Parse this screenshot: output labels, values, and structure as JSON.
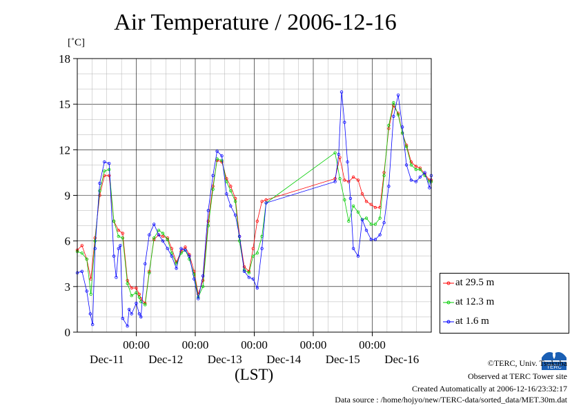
{
  "title": "Air Temperature / 2006-12-16",
  "unit_label": "[˚C]",
  "x_axis_label": "(LST)",
  "credits": {
    "copyright": "©TERC, Univ. Tsukuba",
    "site": "Observed at TERC Tower site",
    "created": "Created Automatically at 2006-12-16/23:32:17",
    "source": "Data source : /home/hojyo/new/TERC-data/sorted_data/MET.30m.dat"
  },
  "logo_text": "TERC",
  "chart_data": {
    "type": "line",
    "title": "Air Temperature / 2006-12-16",
    "ylabel": "[˚C]",
    "xlabel": "(LST)",
    "ylim": [
      0,
      18
    ],
    "yticks": [
      0,
      3,
      6,
      9,
      12,
      15,
      18
    ],
    "xlim": [
      -0.5,
      5.5
    ],
    "x_unit": "days since 2006-12-11 00:00 LST",
    "x_time_ticks": [
      {
        "x": 0.5,
        "label": "00:00"
      },
      {
        "x": 1.5,
        "label": "00:00"
      },
      {
        "x": 2.5,
        "label": "00:00"
      },
      {
        "x": 3.5,
        "label": "00:00"
      },
      {
        "x": 4.5,
        "label": "00:00"
      }
    ],
    "x_day_labels": [
      {
        "x": 0.0,
        "label": "Dec-11"
      },
      {
        "x": 1.0,
        "label": "Dec-12"
      },
      {
        "x": 2.0,
        "label": "Dec-13"
      },
      {
        "x": 3.0,
        "label": "Dec-14"
      },
      {
        "x": 4.0,
        "label": "Dec-15"
      },
      {
        "x": 5.0,
        "label": "Dec-16"
      }
    ],
    "grid": true,
    "legend_position": "right",
    "series": [
      {
        "name": "at 29.5 m",
        "color": "#ff0000",
        "x": [
          -0.5,
          -0.42,
          -0.34,
          -0.27,
          -0.2,
          -0.12,
          -0.04,
          0.04,
          0.12,
          0.2,
          0.27,
          0.35,
          0.42,
          0.5,
          0.55,
          0.58,
          0.65,
          0.72,
          0.8,
          0.88,
          0.95,
          1.03,
          1.1,
          1.18,
          1.26,
          1.33,
          1.4,
          1.48,
          1.55,
          1.63,
          1.72,
          1.8,
          1.87,
          1.95,
          2.03,
          2.1,
          2.18,
          2.25,
          2.33,
          2.41,
          2.48,
          2.55,
          2.63,
          2.7,
          2.78,
          2.85,
          3.87,
          3.95,
          4.03,
          4.1,
          4.18,
          4.26,
          4.33,
          4.4,
          4.48,
          4.55,
          4.63,
          4.7,
          4.78,
          4.86,
          4.94,
          5.01,
          5.08,
          5.16,
          5.24,
          5.31,
          5.39,
          5.47,
          5.5
        ],
        "y": [
          5.4,
          5.7,
          4.8,
          3.5,
          6.2,
          9.0,
          10.3,
          10.3,
          7.3,
          6.7,
          6.5,
          3.4,
          2.9,
          2.9,
          2.5,
          2.2,
          1.9,
          4.0,
          6.1,
          6.4,
          6.3,
          6.2,
          5.5,
          4.6,
          5.3,
          5.6,
          5.1,
          4.0,
          2.5,
          3.4,
          7.3,
          9.6,
          11.3,
          11.2,
          10.1,
          9.6,
          8.8,
          6.3,
          4.3,
          4.0,
          5.5,
          7.3,
          8.6,
          8.7,
          null,
          null,
          10.1,
          11.5,
          10.0,
          9.9,
          10.2,
          10.0,
          9.1,
          8.6,
          8.4,
          8.2,
          8.2,
          10.5,
          13.4,
          14.9,
          14.4,
          13.1,
          12.3,
          11.2,
          10.9,
          10.8,
          10.4,
          10.0,
          10.0
        ]
      },
      {
        "name": "at 12.3 m",
        "color": "#00cc00",
        "x": [
          -0.5,
          -0.42,
          -0.34,
          -0.27,
          -0.2,
          -0.12,
          -0.04,
          0.04,
          0.12,
          0.2,
          0.27,
          0.35,
          0.42,
          0.5,
          0.55,
          0.58,
          0.65,
          0.72,
          0.8,
          0.88,
          0.95,
          1.03,
          1.1,
          1.18,
          1.26,
          1.33,
          1.4,
          1.48,
          1.55,
          1.63,
          1.72,
          1.8,
          1.87,
          1.95,
          2.03,
          2.1,
          2.18,
          2.25,
          2.33,
          2.41,
          2.48,
          2.55,
          2.63,
          2.7,
          2.78,
          2.85,
          3.87,
          3.95,
          4.03,
          4.1,
          4.18,
          4.26,
          4.33,
          4.4,
          4.48,
          4.55,
          4.63,
          4.7,
          4.78,
          4.86,
          4.94,
          5.01,
          5.08,
          5.16,
          5.24,
          5.31,
          5.39,
          5.47,
          5.5
        ],
        "y": [
          5.3,
          5.2,
          4.8,
          2.5,
          6.0,
          9.3,
          10.6,
          10.7,
          7.3,
          6.3,
          6.2,
          3.2,
          2.4,
          2.6,
          2.3,
          2.0,
          1.8,
          3.9,
          6.2,
          6.7,
          6.5,
          6.1,
          5.2,
          4.5,
          5.2,
          5.4,
          4.8,
          3.8,
          2.3,
          3.0,
          7.0,
          9.4,
          11.4,
          11.3,
          9.9,
          9.3,
          8.6,
          6.0,
          4.1,
          3.9,
          5.0,
          5.2,
          6.3,
          8.5,
          null,
          null,
          11.8,
          10.1,
          8.7,
          7.3,
          8.3,
          7.9,
          7.4,
          7.5,
          7.1,
          7.1,
          7.5,
          10.3,
          13.6,
          15.1,
          14.3,
          13.1,
          12.2,
          11.0,
          10.7,
          10.7,
          10.3,
          9.9,
          9.9
        ]
      },
      {
        "name": "at 1.6 m",
        "color": "#0000ff",
        "x": [
          -0.5,
          -0.42,
          -0.34,
          -0.28,
          -0.24,
          -0.2,
          -0.12,
          -0.04,
          0.04,
          0.12,
          0.16,
          0.2,
          0.23,
          0.27,
          0.35,
          0.38,
          0.42,
          0.5,
          0.55,
          0.58,
          0.65,
          0.72,
          0.8,
          0.88,
          0.95,
          1.03,
          1.1,
          1.18,
          1.26,
          1.33,
          1.4,
          1.48,
          1.55,
          1.63,
          1.72,
          1.8,
          1.87,
          1.95,
          2.03,
          2.1,
          2.18,
          2.25,
          2.33,
          2.41,
          2.48,
          2.55,
          2.63,
          2.7,
          2.78,
          2.85,
          3.87,
          3.93,
          3.98,
          4.03,
          4.08,
          4.13,
          4.18,
          4.26,
          4.33,
          4.4,
          4.48,
          4.55,
          4.63,
          4.7,
          4.78,
          4.86,
          4.94,
          5.01,
          5.08,
          5.16,
          5.24,
          5.31,
          5.39,
          5.47,
          5.5
        ],
        "y": [
          3.9,
          4.0,
          2.7,
          1.2,
          0.5,
          5.5,
          9.8,
          11.2,
          11.1,
          5.0,
          3.6,
          5.5,
          5.7,
          0.9,
          0.4,
          1.5,
          1.2,
          1.9,
          1.2,
          1.0,
          4.5,
          6.4,
          7.1,
          6.4,
          6.0,
          5.5,
          5.0,
          4.2,
          5.5,
          5.4,
          5.0,
          3.5,
          2.2,
          3.7,
          8.0,
          10.3,
          11.9,
          11.6,
          9.1,
          8.3,
          7.7,
          6.3,
          4.0,
          3.6,
          3.5,
          2.9,
          5.5,
          8.5,
          null,
          null,
          9.9,
          11.7,
          15.8,
          13.8,
          11.2,
          8.8,
          5.5,
          5.0,
          7.4,
          6.7,
          6.1,
          6.1,
          6.4,
          7.2,
          9.6,
          14.2,
          15.6,
          13.5,
          11.0,
          10.0,
          9.9,
          10.2,
          10.5,
          9.5,
          10.3
        ]
      }
    ]
  }
}
